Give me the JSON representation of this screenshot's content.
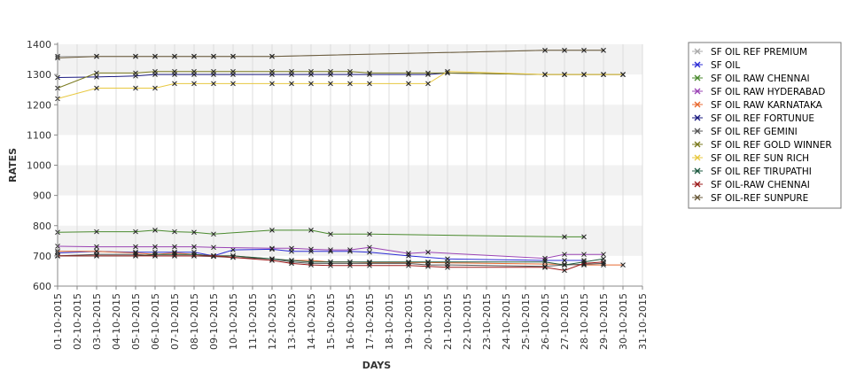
{
  "chart_data": {
    "type": "line",
    "title": "",
    "xlabel": "DAYS",
    "ylabel": "RATES",
    "ylim": [
      600,
      1400
    ],
    "yticks": [
      600,
      700,
      800,
      900,
      1000,
      1100,
      1200,
      1300,
      1400
    ],
    "grid": true,
    "legend_position": "right",
    "categories": [
      "01-10-2015",
      "02-10-2015",
      "03-10-2015",
      "04-10-2015",
      "05-10-2015",
      "06-10-2015",
      "07-10-2015",
      "08-10-2015",
      "09-10-2015",
      "10-10-2015",
      "11-10-2015",
      "12-10-2015",
      "13-10-2015",
      "14-10-2015",
      "15-10-2015",
      "16-10-2015",
      "17-10-2015",
      "18-10-2015",
      "19-10-2015",
      "20-10-2015",
      "21-10-2015",
      "22-10-2015",
      "23-10-2015",
      "24-10-2015",
      "25-10-2015",
      "26-10-2015",
      "27-10-2015",
      "28-10-2015",
      "29-10-2015",
      "30-10-2015",
      "31-10-2015"
    ],
    "series": [
      {
        "name": " SF OIL REF PREMIUM",
        "color": "#aaaaaa",
        "values": [
          1360,
          null,
          1360,
          null,
          1360,
          1360,
          1360,
          1360,
          1360,
          1360,
          null,
          1360,
          null,
          null,
          null,
          null,
          null,
          null,
          null,
          null,
          null,
          null,
          null,
          null,
          null,
          1380,
          1380,
          1380,
          1380,
          null,
          null
        ]
      },
      {
        "name": "SF OIL",
        "color": "#2c2cd6",
        "values": [
          710,
          null,
          715,
          null,
          712,
          712,
          712,
          712,
          700,
          720,
          null,
          722,
          715,
          715,
          715,
          715,
          712,
          null,
          700,
          null,
          690,
          null,
          null,
          null,
          null,
          685,
          685,
          685,
          null,
          null,
          null
        ]
      },
      {
        "name": "SF OIL RAW CHENNAI",
        "color": "#4a8a2e",
        "values": [
          778,
          null,
          780,
          null,
          780,
          785,
          780,
          778,
          772,
          null,
          null,
          785,
          null,
          785,
          772,
          null,
          772,
          null,
          null,
          null,
          null,
          null,
          null,
          null,
          null,
          null,
          763,
          763,
          null,
          null,
          null
        ]
      },
      {
        "name": "SF OIL RAW HYDERABAD",
        "color": "#9b44b5",
        "values": [
          732,
          null,
          730,
          null,
          730,
          730,
          730,
          730,
          728,
          null,
          null,
          725,
          725,
          722,
          720,
          720,
          728,
          null,
          708,
          712,
          null,
          null,
          null,
          null,
          null,
          692,
          705,
          705,
          705,
          null,
          null
        ]
      },
      {
        "name": "SF OIL RAW KARNATAKA",
        "color": "#e86a30",
        "values": [
          715,
          null,
          715,
          null,
          710,
          705,
          710,
          705,
          700,
          700,
          null,
          690,
          685,
          685,
          680,
          680,
          678,
          null,
          678,
          678,
          null,
          null,
          null,
          null,
          null,
          null,
          672,
          670,
          670,
          670,
          null
        ]
      },
      {
        "name": "SF OIL REF FORTUNUE",
        "color": "#1a1a80",
        "values": [
          1290,
          null,
          1292,
          null,
          1295,
          1300,
          1300,
          1300,
          1300,
          1300,
          null,
          1300,
          1300,
          1300,
          1300,
          1300,
          1300,
          null,
          1300,
          1300,
          1305,
          null,
          null,
          null,
          null,
          1300,
          1300,
          1300,
          1300,
          1300,
          null
        ]
      },
      {
        "name": "SF OIL REF GEMINI",
        "color": "#555555",
        "values": [
          700,
          null,
          705,
          null,
          705,
          700,
          700,
          700,
          698,
          695,
          null,
          690,
          680,
          675,
          675,
          675,
          675,
          null,
          675,
          670,
          670,
          null,
          null,
          null,
          null,
          665,
          670,
          672,
          675,
          null,
          null
        ]
      },
      {
        "name": "SF OIL REF GOLD WINNER",
        "color": "#7a7a1e",
        "values": [
          1255,
          null,
          1305,
          null,
          1305,
          1310,
          1310,
          1310,
          1310,
          1310,
          null,
          1310,
          1310,
          1310,
          1310,
          1310,
          1305,
          null,
          1305,
          1305,
          1305,
          null,
          null,
          null,
          null,
          1300,
          1300,
          1300,
          1300,
          1300,
          null
        ]
      },
      {
        "name": "SF OIL REF SUN RICH",
        "color": "#e8c840",
        "values": [
          1220,
          null,
          1255,
          null,
          1255,
          1255,
          1270,
          1270,
          1270,
          1270,
          null,
          1270,
          1270,
          1270,
          1270,
          1270,
          1270,
          null,
          1270,
          1270,
          1310,
          null,
          null,
          null,
          null,
          1300,
          1300,
          1300,
          1300,
          1300,
          null
        ]
      },
      {
        "name": "SF OIL REF TIRUPATHI",
        "color": "#1e5a40",
        "values": [
          700,
          null,
          700,
          null,
          700,
          705,
          705,
          705,
          700,
          700,
          null,
          690,
          685,
          680,
          680,
          680,
          680,
          null,
          680,
          680,
          680,
          null,
          null,
          null,
          null,
          680,
          670,
          680,
          690,
          null,
          null
        ]
      },
      {
        "name": "SF OIL-RAW CHENNAI",
        "color": "#9c1a1a",
        "values": [
          700,
          null,
          700,
          null,
          700,
          700,
          700,
          700,
          700,
          695,
          null,
          685,
          675,
          670,
          668,
          668,
          668,
          null,
          668,
          665,
          662,
          null,
          null,
          null,
          null,
          662,
          652,
          675,
          680,
          null,
          null
        ]
      },
      {
        "name": "SF OIL-REF SUNPURE",
        "color": "#6a5a3a",
        "values": [
          1355,
          null,
          1360,
          null,
          1360,
          1360,
          1360,
          1360,
          1360,
          1360,
          null,
          1360,
          null,
          null,
          null,
          null,
          null,
          null,
          null,
          null,
          null,
          null,
          null,
          null,
          null,
          1380,
          1380,
          1380,
          1380,
          null,
          null
        ]
      }
    ]
  }
}
